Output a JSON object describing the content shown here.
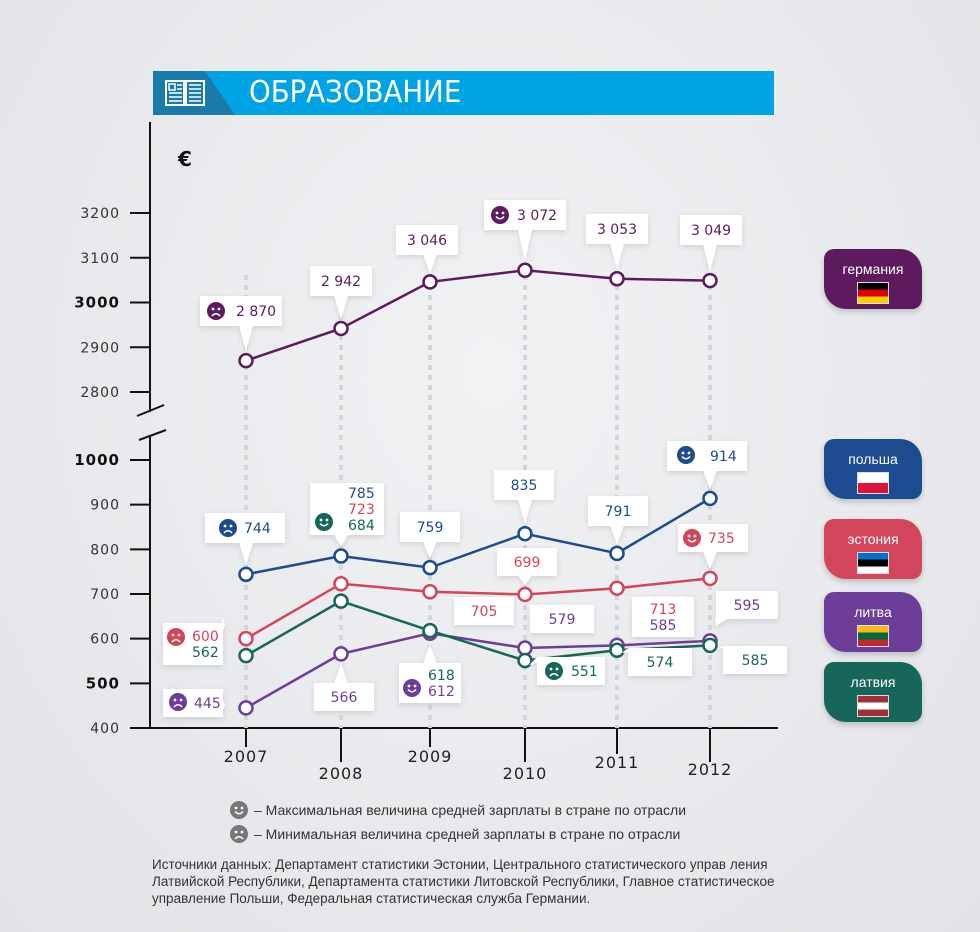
{
  "header": {
    "title": "ОБРАЗОВАНИЕ",
    "icon": "open-book-icon",
    "bg_color": "#00a3e4",
    "icon_bg_color": "#1a7aa8"
  },
  "chart_data": {
    "type": "line",
    "title": "ОБРАЗОВАНИЕ",
    "ylabel": "€",
    "xlabel": "",
    "x": [
      "2007",
      "2008",
      "2009",
      "2010",
      "2011",
      "2012"
    ],
    "y_axis_upper": {
      "ticks": [
        3200,
        3100,
        3000,
        2900,
        2800
      ],
      "range": [
        2800,
        3200
      ],
      "bold_ticks": [
        3000
      ]
    },
    "y_axis_lower": {
      "ticks": [
        1000,
        900,
        800,
        700,
        600,
        500,
        400
      ],
      "range": [
        400,
        1000
      ],
      "bold_ticks": [
        1000,
        500
      ]
    },
    "axis_break": true,
    "grid": false,
    "legend_position": "right",
    "series": [
      {
        "name": "германия",
        "color": "#5e1a5e",
        "axis": "upper",
        "values": [
          2870,
          2942,
          3046,
          3072,
          3053,
          3049
        ],
        "labels": [
          "2 870",
          "2 942",
          "3 046",
          "3 072",
          "3 053",
          "3 049"
        ],
        "min_index": 0,
        "max_index": 3
      },
      {
        "name": "польша",
        "color": "#1d4b8f",
        "axis": "lower",
        "values": [
          744,
          785,
          759,
          835,
          791,
          914
        ],
        "labels": [
          "744",
          "785",
          "759",
          "835",
          "791",
          "914"
        ],
        "min_index": 0,
        "max_index": 5
      },
      {
        "name": "эстония",
        "color": "#d2455a",
        "axis": "lower",
        "values": [
          600,
          723,
          705,
          699,
          713,
          735
        ],
        "labels": [
          "600",
          "723",
          "705",
          "699",
          "713",
          "735"
        ],
        "min_index": 0,
        "max_index": 5
      },
      {
        "name": "литва",
        "color": "#6c3e9a",
        "axis": "lower",
        "values": [
          445,
          566,
          612,
          579,
          585,
          595
        ],
        "labels": [
          "445",
          "566",
          "612",
          "579",
          "585",
          "595"
        ],
        "min_index": 0,
        "max_index": 2
      },
      {
        "name": "латвия",
        "color": "#17665a",
        "axis": "lower",
        "values": [
          562,
          684,
          618,
          551,
          574,
          585
        ],
        "labels": [
          "562",
          "684",
          "618",
          "551",
          "574",
          "585"
        ],
        "min_index": 3,
        "max_index": 1
      }
    ]
  },
  "legend": [
    {
      "name": "германия",
      "color": "#5e1a5e",
      "flag": [
        "#000000",
        "#dd0000",
        "#ffce00"
      ]
    },
    {
      "name": "польша",
      "color": "#1d4b8f",
      "flag": [
        "#ffffff",
        "#dc143c"
      ]
    },
    {
      "name": "эстония",
      "color": "#d2455a",
      "flag": [
        "#0072ce",
        "#000000",
        "#ffffff"
      ]
    },
    {
      "name": "литва",
      "color": "#6c3e9a",
      "flag": [
        "#fdb913",
        "#006a44",
        "#c1272d"
      ]
    },
    {
      "name": "латвия",
      "color": "#17665a",
      "flag": [
        "#9e3039",
        "#ffffff",
        "#9e3039"
      ]
    }
  ],
  "notes": {
    "max": "– Максимальная величина средней зарплаты в стране по отрасли",
    "min": "– Минимальная величина средней зарплаты в стране по отрасли"
  },
  "sources": "Источники данных: Департамент статистики Эстонии, Центрального статистического управ ления Латвийской Республики, Департамента статистики Литовской Республики, Главное статистическое управление Польши, Федеральная статистическая служба Германии."
}
